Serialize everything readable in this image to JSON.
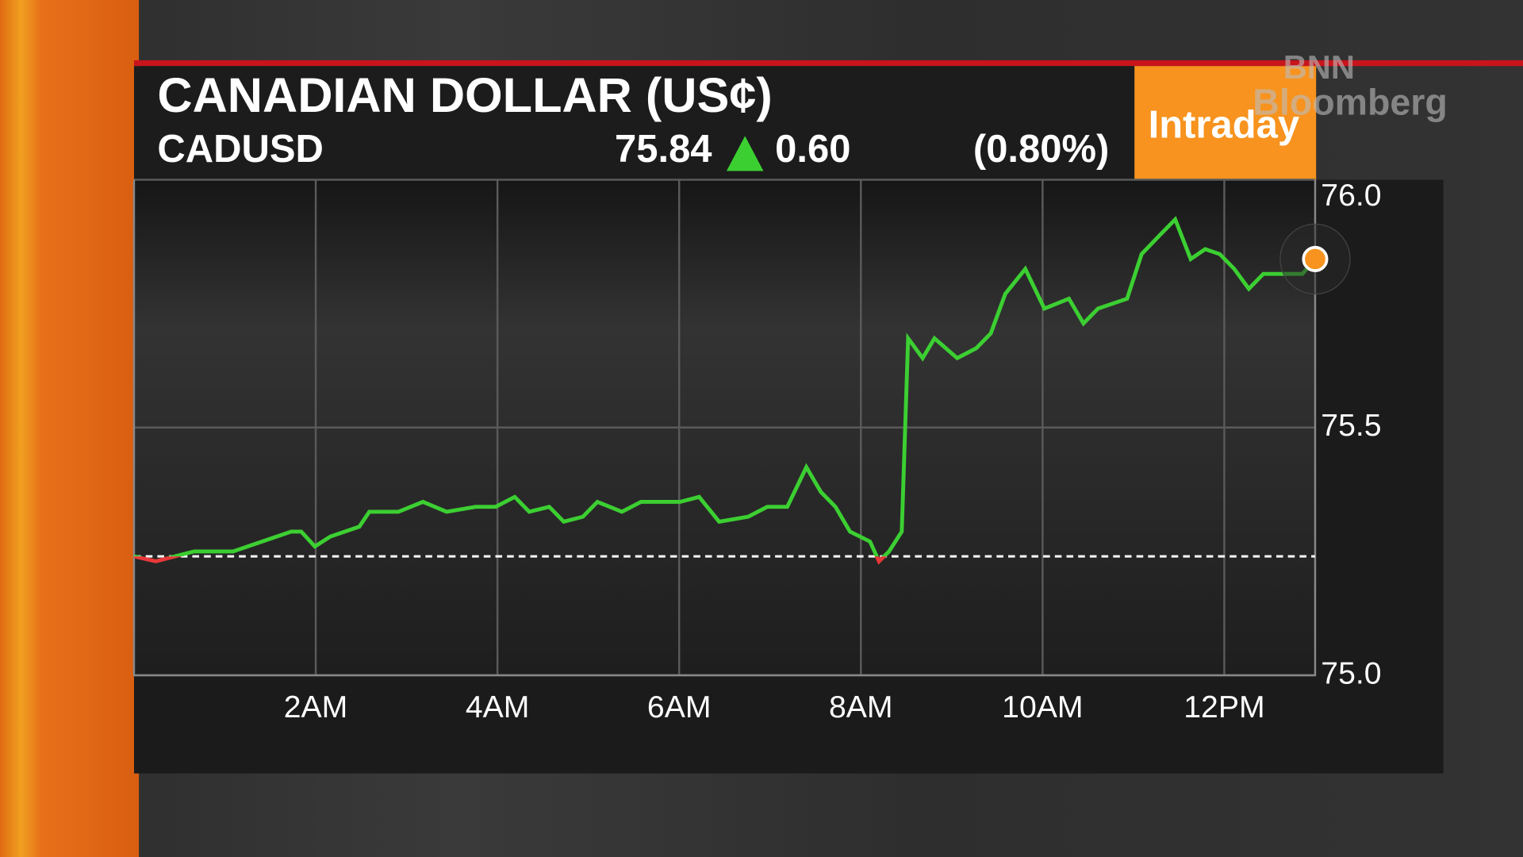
{
  "chart_data": {
    "type": "line",
    "title": "CANADIAN DOLLAR (US¢)",
    "quote": {
      "ticker": "CADUSD",
      "last": "75.84",
      "change": "0.60",
      "change_pct": "(0.80%)"
    },
    "mode": "Intraday",
    "logo": [
      "BNN",
      "Bloomberg"
    ],
    "x": [
      0.0,
      0.24,
      0.45,
      0.66,
      1.09,
      1.41,
      1.73,
      1.84,
      1.99,
      2.16,
      2.48,
      2.59,
      2.91,
      3.18,
      3.44,
      3.76,
      3.98,
      4.19,
      4.35,
      4.57,
      4.73,
      4.94,
      5.1,
      5.37,
      5.58,
      6.01,
      6.22,
      6.44,
      6.76,
      6.97,
      7.19,
      7.4,
      7.56,
      7.72,
      7.88,
      8.1,
      8.2,
      8.31,
      8.45,
      8.52,
      8.68,
      8.81,
      9.06,
      9.27,
      9.43,
      9.59,
      9.81,
      10.02,
      10.29,
      10.45,
      10.61,
      10.93,
      11.09,
      11.3,
      11.46,
      11.63,
      11.79,
      11.95,
      12.11,
      12.27,
      12.43,
      12.64,
      12.86,
      13.0
    ],
    "values": [
      75.24,
      75.23,
      75.24,
      75.25,
      75.25,
      75.27,
      75.29,
      75.29,
      75.26,
      75.28,
      75.3,
      75.33,
      75.33,
      75.35,
      75.33,
      75.34,
      75.34,
      75.36,
      75.33,
      75.34,
      75.31,
      75.32,
      75.35,
      75.33,
      75.35,
      75.35,
      75.36,
      75.31,
      75.32,
      75.34,
      75.34,
      75.42,
      75.37,
      75.34,
      75.29,
      75.27,
      75.23,
      75.25,
      75.29,
      75.68,
      75.64,
      75.68,
      75.64,
      75.66,
      75.69,
      75.77,
      75.82,
      75.74,
      75.76,
      75.71,
      75.74,
      75.76,
      75.85,
      75.89,
      75.92,
      75.84,
      75.86,
      75.85,
      75.82,
      75.78,
      75.81,
      75.81,
      75.81,
      75.84
    ],
    "color": "#3ccf32",
    "down_color": "#e8383a",
    "marker_color": "#f7931e",
    "reference": 75.24,
    "xlim": [
      0,
      13
    ],
    "xticks": [
      {
        "value": 2,
        "label": "2AM"
      },
      {
        "value": 4,
        "label": "4AM"
      },
      {
        "value": 6,
        "label": "6AM"
      },
      {
        "value": 8,
        "label": "8AM"
      },
      {
        "value": 10,
        "label": "10AM"
      },
      {
        "value": 12,
        "label": "12PM"
      }
    ],
    "ylim": [
      75,
      76
    ],
    "yticks": [
      {
        "value": 75,
        "label": "75.0"
      },
      75.5,
      {
        "value": 76,
        "label": "76.0"
      }
    ],
    "grid": true
  }
}
